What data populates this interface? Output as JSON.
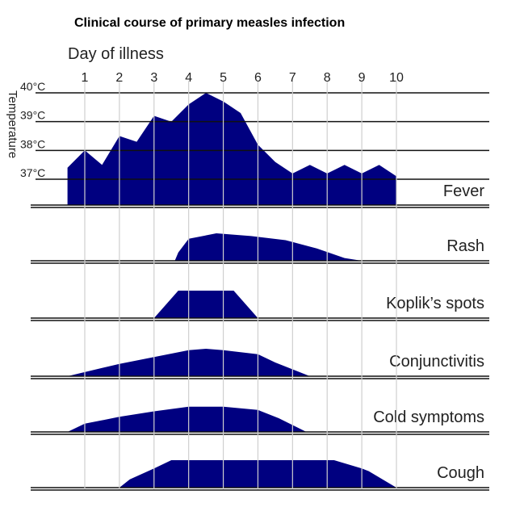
{
  "chart_data": {
    "type": "area",
    "title": "Clinical course of primary measles infection",
    "xlabel": "Day of illness",
    "ylabel": "Temperature",
    "x_ticks": [
      "1",
      "2",
      "3",
      "4",
      "5",
      "6",
      "7",
      "8",
      "9",
      "10"
    ],
    "xlim": [
      0.5,
      10.5
    ],
    "fill_color": "#000080",
    "fever": {
      "name": "Fever",
      "y_ticks": [
        "40°C",
        "39°C",
        "38°C",
        "37°C"
      ],
      "y_tick_values": [
        40,
        39,
        38,
        37
      ],
      "ylim": [
        36,
        40.2
      ],
      "points": [
        [
          0.5,
          36.6
        ],
        [
          0.5,
          37.4
        ],
        [
          1.0,
          38.0
        ],
        [
          1.5,
          37.5
        ],
        [
          2.0,
          38.5
        ],
        [
          2.5,
          38.3
        ],
        [
          3.0,
          39.2
        ],
        [
          3.5,
          39.0
        ],
        [
          4.0,
          39.6
        ],
        [
          4.5,
          40.0
        ],
        [
          5.0,
          39.7
        ],
        [
          5.5,
          39.3
        ],
        [
          6.0,
          38.2
        ],
        [
          6.5,
          37.6
        ],
        [
          7.0,
          37.2
        ],
        [
          7.5,
          37.5
        ],
        [
          8.0,
          37.2
        ],
        [
          8.5,
          37.5
        ],
        [
          9.0,
          37.2
        ],
        [
          9.5,
          37.5
        ],
        [
          10.0,
          37.1
        ],
        [
          10.0,
          36.6
        ]
      ]
    },
    "symptoms": [
      {
        "name": "Rash",
        "points": [
          [
            3.6,
            0
          ],
          [
            3.7,
            0.3
          ],
          [
            4.0,
            0.8
          ],
          [
            4.8,
            1.0
          ],
          [
            5.8,
            0.9
          ],
          [
            6.8,
            0.75
          ],
          [
            7.7,
            0.45
          ],
          [
            8.5,
            0.1
          ],
          [
            9.0,
            0
          ]
        ]
      },
      {
        "name": "Koplik’s spots",
        "points": [
          [
            3.0,
            0
          ],
          [
            3.7,
            1.0
          ],
          [
            5.3,
            1.0
          ],
          [
            6.0,
            0
          ]
        ]
      },
      {
        "name": "Conjunctivitis",
        "points": [
          [
            0.5,
            0
          ],
          [
            2.0,
            0.45
          ],
          [
            3.0,
            0.7
          ],
          [
            4.0,
            0.95
          ],
          [
            4.5,
            1.0
          ],
          [
            5.0,
            0.95
          ],
          [
            6.0,
            0.8
          ],
          [
            6.5,
            0.5
          ],
          [
            7.5,
            0
          ]
        ]
      },
      {
        "name": "Cold symptoms",
        "points": [
          [
            0.5,
            0
          ],
          [
            1.0,
            0.3
          ],
          [
            2.0,
            0.55
          ],
          [
            3.0,
            0.75
          ],
          [
            4.0,
            0.92
          ],
          [
            5.0,
            0.92
          ],
          [
            6.0,
            0.8
          ],
          [
            6.6,
            0.5
          ],
          [
            7.4,
            0
          ]
        ]
      },
      {
        "name": "Cough",
        "points": [
          [
            2.0,
            0
          ],
          [
            2.3,
            0.3
          ],
          [
            3.0,
            0.7
          ],
          [
            3.5,
            1.0
          ],
          [
            8.2,
            1.0
          ],
          [
            9.0,
            0.7
          ],
          [
            9.2,
            0.6
          ],
          [
            10.0,
            0
          ]
        ]
      }
    ]
  }
}
